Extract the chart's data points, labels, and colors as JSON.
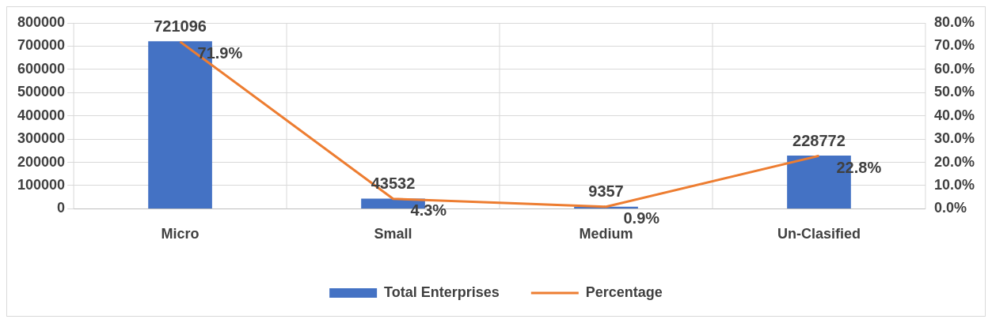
{
  "chart_data": {
    "type": "bar",
    "categories": [
      "Micro",
      "Small",
      "Medium",
      "Un-Clasified"
    ],
    "series": [
      {
        "name": "Total Enterprises",
        "color": "#4472c4",
        "values": [
          721096,
          43532,
          9357,
          228772
        ],
        "value_labels": [
          "721096",
          "43532",
          "9357",
          "228772"
        ]
      },
      {
        "name": "Percentage",
        "type": "line",
        "axis": "y2",
        "color": "#ed7d31",
        "values": [
          71.9,
          4.3,
          0.9,
          22.8
        ],
        "value_labels": [
          "71.9%",
          "4.3%",
          "0.9%",
          "22.8%"
        ]
      }
    ],
    "ylim": [
      0,
      800000
    ],
    "yticks": [
      0,
      100000,
      200000,
      300000,
      400000,
      500000,
      600000,
      700000,
      800000
    ],
    "y2lim": [
      0,
      80
    ],
    "y2ticks": [
      {
        "value": 0,
        "label": "0.0%"
      },
      {
        "value": 10,
        "label": "10.0%"
      },
      {
        "value": 20,
        "label": "20.0%"
      },
      {
        "value": 30,
        "label": "30.0%"
      },
      {
        "value": 40,
        "label": "40.0%"
      },
      {
        "value": 50,
        "label": "50.0%"
      },
      {
        "value": 60,
        "label": "60.0%"
      },
      {
        "value": 70,
        "label": "70.0%"
      },
      {
        "value": 80,
        "label": "80.0%"
      }
    ],
    "grid": true,
    "legend": "bottom",
    "marker": "none",
    "line_style": "solid"
  }
}
